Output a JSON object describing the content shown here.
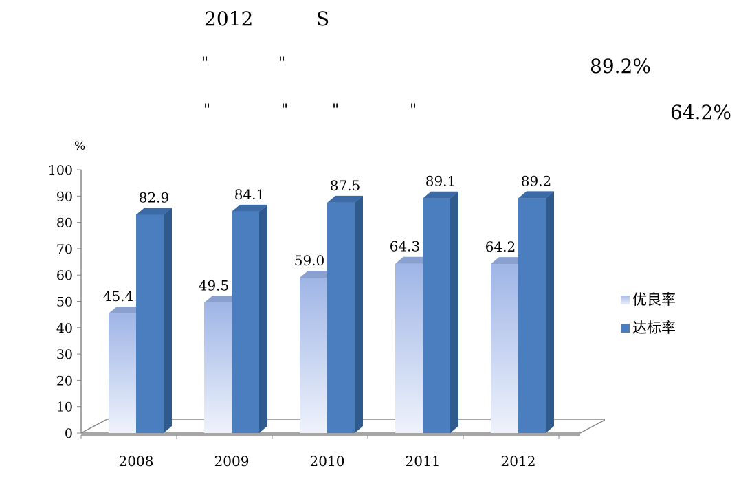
{
  "text": {
    "year": "2012",
    "letter": "S",
    "value_top": "89.2%",
    "value_second": "64.2%",
    "quote_mark": "\""
  },
  "chart_data": {
    "type": "bar",
    "categories": [
      "2008",
      "2009",
      "2010",
      "2011",
      "2012"
    ],
    "series": [
      {
        "name": "优良率",
        "values": [
          45.4,
          49.5,
          59.0,
          64.3,
          64.2
        ],
        "color": "#a9bde9"
      },
      {
        "name": "达标率",
        "values": [
          82.9,
          84.1,
          87.5,
          89.1,
          89.2
        ],
        "color": "#4a7ebf"
      }
    ],
    "value_labels": [
      [
        "45.4",
        "49.5",
        "59.0",
        "64.3",
        "64.2"
      ],
      [
        "82.9",
        "84.1",
        "87.5",
        "89.1",
        "89.2"
      ]
    ],
    "unit_label": "%",
    "y_ticks": [
      "0",
      "10",
      "20",
      "30",
      "40",
      "50",
      "60",
      "70",
      "80",
      "90",
      "100"
    ],
    "ylim": [
      0,
      100
    ],
    "legend_position": "right",
    "grid": false
  }
}
